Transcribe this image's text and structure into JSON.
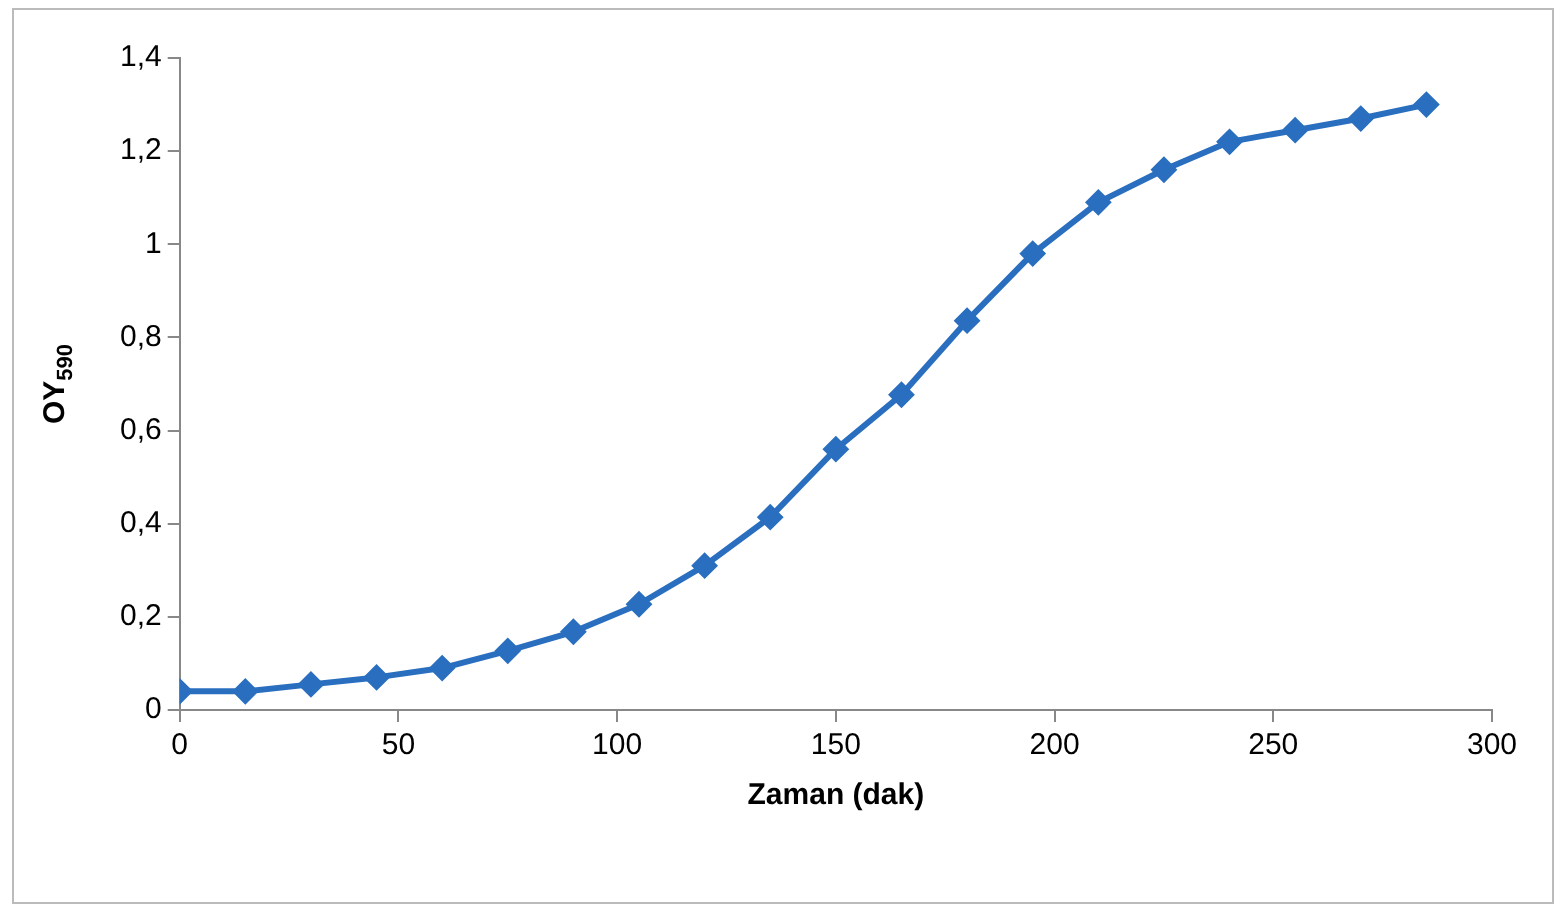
{
  "chart_data": {
    "type": "line",
    "xlabel": "Zaman (dak)",
    "ylabel": "OY$_{590}$",
    "x": [
      0,
      15,
      30,
      45,
      60,
      75,
      90,
      105,
      120,
      135,
      150,
      165,
      180,
      195,
      210,
      225,
      240,
      255,
      270,
      285
    ],
    "series": [
      {
        "color": "#2a6fbf",
        "values": [
          0.04,
          0.04,
          0.055,
          0.07,
          0.09,
          0.127,
          0.168,
          0.227,
          0.31,
          0.414,
          0.56,
          0.677,
          0.836,
          0.98,
          1.09,
          1.16,
          1.22,
          1.245,
          1.27,
          1.3
        ]
      }
    ],
    "xlim": [
      0,
      300
    ],
    "xticks": [
      0,
      50,
      100,
      150,
      200,
      250,
      300
    ],
    "ylim": [
      0,
      1.4
    ],
    "yticks": [
      0,
      {
        "value": 0.2,
        "label": "0,2"
      },
      {
        "value": 0.4,
        "label": "0,4"
      },
      {
        "value": 0.6,
        "label": "0,6"
      },
      {
        "value": 0.8,
        "label": "0,8"
      },
      1,
      {
        "value": 1.2,
        "label": "1,2"
      },
      {
        "value": 1.4,
        "label": "1,4"
      }
    ],
    "grid": false,
    "legend": false,
    "marker": "diamond",
    "line_style": "solid"
  }
}
